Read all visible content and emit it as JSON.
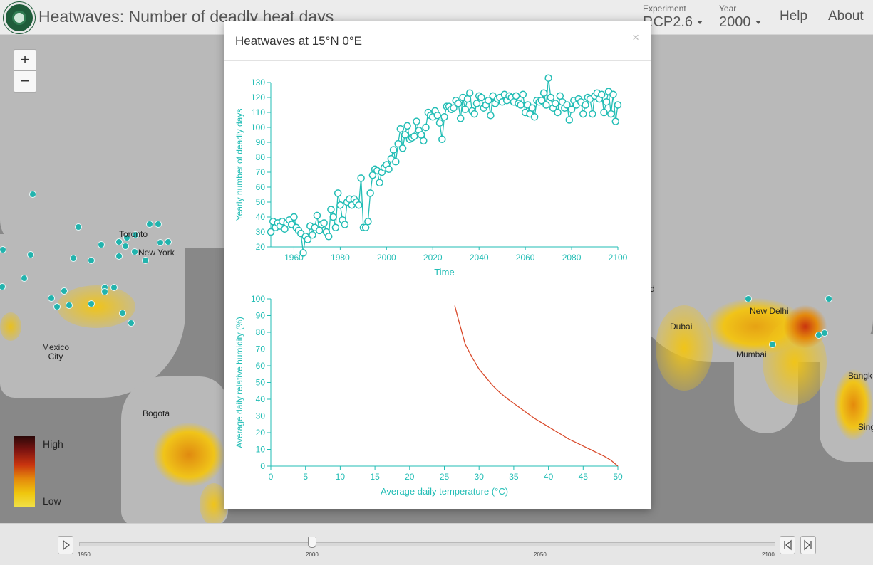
{
  "header": {
    "title": "Heatwaves: Number of deadly heat days",
    "experiment_label": "Experiment",
    "experiment_value": "RCP2.6",
    "year_label": "Year",
    "year_value": "2000",
    "help": "Help",
    "about": "About"
  },
  "map": {
    "zoom_in": "+",
    "zoom_out": "−",
    "legend_high": "High",
    "legend_low": "Low",
    "cities": [
      "Toronto",
      "New York",
      "Mexico City",
      "Bogota",
      "New Delhi",
      "Dubai",
      "Mumbai",
      "Bangk",
      "Sing",
      "d"
    ]
  },
  "timeline": {
    "ticks": [
      "1950",
      "2000",
      "2050",
      "2100"
    ]
  },
  "modal": {
    "title": "Heatwaves at 15°N 0°E",
    "close": "×"
  },
  "chart_data": [
    {
      "type": "line",
      "xlabel": "Time",
      "ylabel": "Yearly number of deadly days",
      "xlim": [
        1950,
        2100
      ],
      "ylim": [
        20,
        130
      ],
      "xticks": [
        1960,
        1980,
        2000,
        2020,
        2040,
        2060,
        2080,
        2100
      ],
      "yticks": [
        20,
        30,
        40,
        50,
        60,
        70,
        80,
        90,
        100,
        110,
        120,
        130
      ],
      "color": "#22bdb5",
      "x": [
        1950,
        1951,
        1952,
        1953,
        1954,
        1955,
        1956,
        1957,
        1958,
        1959,
        1960,
        1961,
        1962,
        1963,
        1964,
        1965,
        1966,
        1967,
        1968,
        1969,
        1970,
        1971,
        1972,
        1973,
        1974,
        1975,
        1976,
        1977,
        1978,
        1979,
        1980,
        1981,
        1982,
        1983,
        1984,
        1985,
        1986,
        1987,
        1988,
        1989,
        1990,
        1991,
        1992,
        1993,
        1994,
        1995,
        1996,
        1997,
        1998,
        1999,
        2000,
        2001,
        2002,
        2003,
        2004,
        2005,
        2006,
        2007,
        2008,
        2009,
        2010,
        2011,
        2012,
        2013,
        2014,
        2015,
        2016,
        2017,
        2018,
        2019,
        2020,
        2021,
        2022,
        2023,
        2024,
        2025,
        2026,
        2027,
        2028,
        2029,
        2030,
        2031,
        2032,
        2033,
        2034,
        2035,
        2036,
        2037,
        2038,
        2039,
        2040,
        2041,
        2042,
        2043,
        2044,
        2045,
        2046,
        2047,
        2048,
        2049,
        2050,
        2051,
        2052,
        2053,
        2054,
        2055,
        2056,
        2057,
        2058,
        2059,
        2060,
        2061,
        2062,
        2063,
        2064,
        2065,
        2066,
        2067,
        2068,
        2069,
        2070,
        2071,
        2072,
        2073,
        2074,
        2075,
        2076,
        2077,
        2078,
        2079,
        2080,
        2081,
        2082,
        2083,
        2084,
        2085,
        2086,
        2087,
        2088,
        2089,
        2090,
        2091,
        2092,
        2093,
        2094,
        2095,
        2096,
        2097,
        2098,
        2099,
        2100
      ],
      "y": [
        30,
        37,
        33,
        36,
        34,
        37,
        32,
        36,
        38,
        35,
        40,
        33,
        31,
        29,
        16,
        27,
        25,
        34,
        28,
        33,
        41,
        31,
        35,
        36,
        30,
        27,
        45,
        40,
        33,
        56,
        48,
        38,
        35,
        50,
        52,
        48,
        52,
        50,
        48,
        66,
        33,
        33,
        37,
        56,
        68,
        72,
        71,
        63,
        70,
        73,
        75,
        72,
        79,
        85,
        77,
        89,
        99,
        86,
        95,
        101,
        92,
        93,
        94,
        104,
        98,
        95,
        91,
        100,
        110,
        108,
        107,
        111,
        108,
        103,
        92,
        107,
        114,
        114,
        112,
        113,
        118,
        116,
        106,
        120,
        112,
        119,
        123,
        111,
        109,
        116,
        121,
        120,
        113,
        115,
        118,
        108,
        121,
        116,
        119,
        120,
        117,
        122,
        118,
        121,
        120,
        117,
        121,
        116,
        115,
        122,
        110,
        115,
        109,
        113,
        107,
        118,
        117,
        118,
        123,
        115,
        133,
        120,
        113,
        116,
        110,
        121,
        117,
        113,
        115,
        105,
        112,
        118,
        115,
        119,
        117,
        109,
        115,
        120,
        119,
        109,
        121,
        123,
        119,
        122,
        110,
        117,
        124,
        109,
        122,
        104,
        115
      ]
    },
    {
      "type": "line",
      "xlabel": "Average daily temperature (°C)",
      "ylabel": "Average daily relative humidity (%)",
      "xlim": [
        0,
        50
      ],
      "ylim": [
        0,
        100
      ],
      "xticks": [
        0,
        5,
        10,
        15,
        20,
        25,
        30,
        35,
        40,
        45,
        50
      ],
      "yticks": [
        0,
        10,
        20,
        30,
        40,
        50,
        60,
        70,
        80,
        90,
        100
      ],
      "color": "#d94a2b",
      "x": [
        26.5,
        27,
        28,
        29,
        30,
        31,
        32,
        33,
        34,
        35,
        36,
        37,
        38,
        39,
        40,
        41,
        42,
        43,
        44,
        45,
        46,
        47,
        48,
        49,
        50
      ],
      "y": [
        96,
        88,
        73,
        65,
        58,
        53,
        48,
        44,
        40.5,
        37.5,
        34.5,
        31.5,
        28.5,
        26,
        23.5,
        21,
        18.5,
        16,
        14,
        12,
        10,
        8,
        6,
        3.5,
        0
      ]
    }
  ]
}
